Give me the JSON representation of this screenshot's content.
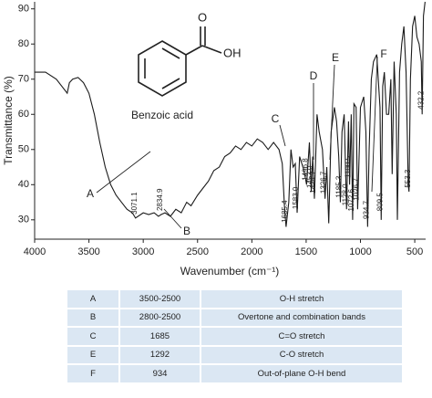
{
  "chart_data": {
    "type": "line",
    "x_label": "Wavenumber (cm⁻¹)",
    "y_label": "Transmittance (%)",
    "xlim": [
      4000,
      400
    ],
    "ylim": [
      24.5,
      92
    ],
    "xticks": [
      4000,
      3500,
      3000,
      2500,
      2000,
      1500,
      1000,
      500
    ],
    "yticks": [
      30,
      40,
      50,
      60,
      70,
      80,
      90
    ],
    "x": [
      4000,
      3900,
      3800,
      3750,
      3700,
      3680,
      3650,
      3600,
      3550,
      3500,
      3450,
      3400,
      3350,
      3300,
      3250,
      3200,
      3150,
      3100,
      3071,
      3000,
      2950,
      2900,
      2860,
      2835,
      2800,
      2750,
      2700,
      2650,
      2600,
      2560,
      2500,
      2450,
      2400,
      2350,
      2300,
      2250,
      2200,
      2150,
      2100,
      2050,
      2000,
      1950,
      1900,
      1850,
      1800,
      1750,
      1720,
      1700,
      1685,
      1660,
      1640,
      1620,
      1600,
      1583,
      1560,
      1520,
      1496,
      1470,
      1453,
      1440,
      1424,
      1400,
      1380,
      1350,
      1326,
      1310,
      1292,
      1270,
      1240,
      1220,
      1200,
      1185,
      1170,
      1150,
      1128,
      1110,
      1100,
      1085,
      1072,
      1060,
      1040,
      1026,
      1000,
      970,
      950,
      934,
      920,
      900,
      880,
      850,
      820,
      809,
      795,
      780,
      760,
      740,
      720,
      708,
      690,
      670,
      660,
      640,
      620,
      600,
      580,
      560,
      553,
      540,
      520,
      500,
      480,
      460,
      440,
      432,
      420,
      405
    ],
    "series": [
      {
        "color": "#1a1a1a",
        "values": [
          72,
          72,
          70,
          68,
          66,
          69,
          70,
          70.5,
          69,
          66,
          60,
          52,
          45,
          40,
          37,
          35,
          33,
          32,
          30.5,
          32,
          31.5,
          32,
          31,
          31.5,
          32,
          31,
          33,
          32,
          35,
          34,
          37,
          39,
          41,
          44,
          45,
          48,
          49,
          51,
          50,
          52,
          51,
          53,
          52,
          50,
          52,
          50,
          46,
          34,
          28,
          35,
          50,
          45,
          46,
          32,
          48,
          44,
          40,
          52,
          38,
          48,
          36,
          60,
          55,
          50,
          36,
          45,
          29,
          55,
          62,
          58,
          48,
          35,
          55,
          60,
          33,
          58,
          40,
          60,
          30,
          63,
          62,
          33,
          62,
          65,
          55,
          28,
          50,
          70,
          75,
          77,
          62,
          30,
          68,
          72,
          60,
          60,
          70,
          43,
          75,
          60,
          30,
          72,
          80,
          85,
          72,
          40,
          38,
          70,
          85,
          88,
          82,
          80,
          75,
          60,
          88,
          92
        ]
      }
    ],
    "peaks": [
      {
        "value": 3071.1,
        "label": "3071.1"
      },
      {
        "value": 2834.9,
        "label": "2834.9"
      },
      {
        "value": 1685.4,
        "label": "1685.4"
      },
      {
        "value": 1583.0,
        "label": "1583.0"
      },
      {
        "value": 1496.8,
        "label": "1496.8"
      },
      {
        "value": 1453.0,
        "label": "1453.0"
      },
      {
        "value": 1424.7,
        "label": "1424.7"
      },
      {
        "value": 1326.7,
        "label": "1326.7"
      },
      {
        "value": 1185.3,
        "label": "1185.3"
      },
      {
        "value": 1128.0,
        "label": "1128.0"
      },
      {
        "value": 1100.5,
        "label": "1100.5"
      },
      {
        "value": 1072.6,
        "label": "1072.6"
      },
      {
        "value": 1026.7,
        "label": "1026.7"
      },
      {
        "value": 934.7,
        "label": "934.7"
      },
      {
        "value": 809.5,
        "label": "809.5"
      },
      {
        "value": 553.3,
        "label": "553.3"
      },
      {
        "value": 432.2,
        "label": "432.2"
      }
    ],
    "callouts": [
      "A",
      "B",
      "C",
      "D",
      "E",
      "F"
    ],
    "structure": {
      "o": "O",
      "oh": "OH",
      "name": "Benzoic acid"
    }
  },
  "table": {
    "rows": [
      [
        "A",
        "3500-2500",
        "O-H stretch"
      ],
      [
        "B",
        "2800-2500",
        "Overtone and combination bands"
      ],
      [
        "C",
        "1685",
        "C=O stretch"
      ],
      [
        "E",
        "1292",
        "C-O stretch"
      ],
      [
        "F",
        "934",
        "Out-of-plane O-H bend"
      ]
    ]
  }
}
